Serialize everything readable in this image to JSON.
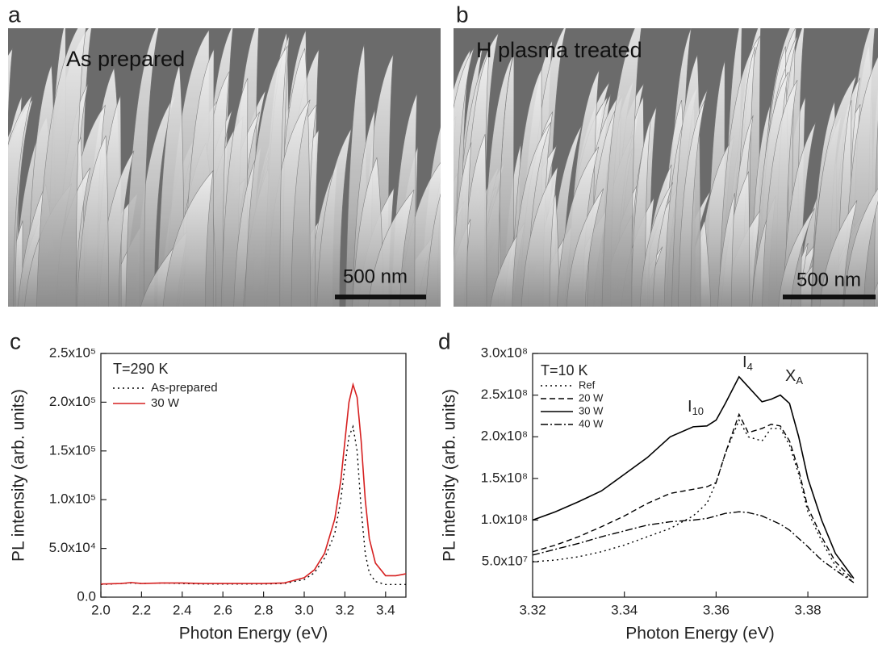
{
  "panels": [
    {
      "label": "a",
      "caption": "As prepared",
      "scale_bar": "500 nm"
    },
    {
      "label": "b",
      "caption": "H plasma treated",
      "scale_bar": "500 nm"
    }
  ],
  "chart_data": [
    {
      "type": "line",
      "panel": "c",
      "x_label": "Photon Energy (eV)",
      "y_label": "PL intensity (arb. units)",
      "annotations": [
        {
          "text": "T=290 K"
        }
      ],
      "x": [
        2.0,
        2.1,
        2.15,
        2.2,
        2.3,
        2.4,
        2.5,
        2.6,
        2.7,
        2.8,
        2.9,
        3.0,
        3.05,
        3.1,
        3.15,
        3.18,
        3.2,
        3.22,
        3.24,
        3.26,
        3.28,
        3.3,
        3.32,
        3.35,
        3.4,
        3.45,
        3.5
      ],
      "series": [
        {
          "name": "As-prepared",
          "color": "#000000",
          "style": "dotted",
          "values": [
            13000,
            14000,
            14500,
            14000,
            14500,
            14000,
            13500,
            13500,
            13500,
            13500,
            14000,
            18000,
            25000,
            40000,
            65000,
            100000,
            135000,
            165000,
            175000,
            150000,
            90000,
            45000,
            25000,
            16000,
            13000,
            13000,
            13000
          ]
        },
        {
          "name": "30 W",
          "color": "#d62020",
          "style": "solid",
          "values": [
            13500,
            14000,
            15000,
            14000,
            14500,
            14500,
            14000,
            14000,
            14000,
            14000,
            14500,
            20000,
            28000,
            45000,
            80000,
            120000,
            160000,
            200000,
            218000,
            205000,
            160000,
            100000,
            60000,
            35000,
            22000,
            22000,
            24000
          ]
        }
      ],
      "xlim": [
        2.0,
        3.5
      ],
      "xticks": [
        {
          "value": 2.0,
          "label": "2.0"
        },
        2.2,
        2.4,
        2.6,
        2.8,
        {
          "value": 3.0,
          "label": "3.0"
        },
        3.2,
        3.4
      ],
      "ylim": [
        0,
        250000
      ],
      "yticks": [
        {
          "value": 0,
          "label": "0.0"
        },
        {
          "value": 50000,
          "label": "5.0x10⁴"
        },
        {
          "value": 100000,
          "label": "1.0x10⁵"
        },
        {
          "value": 150000,
          "label": "1.5x10⁵"
        },
        {
          "value": 200000,
          "label": "2.0x10⁵"
        },
        {
          "value": 250000,
          "label": "2.5x10⁵"
        }
      ],
      "legend": "upper left"
    },
    {
      "type": "line",
      "panel": "d",
      "x_label": "Photon Energy (eV)",
      "y_label": "PL intensity (arb. units)",
      "annotations": [
        {
          "text": "T=10 K"
        },
        {
          "text": "I",
          "sub": "10"
        },
        {
          "text": "I",
          "sub": "4"
        },
        {
          "text": "X",
          "sub": "A"
        }
      ],
      "x": [
        3.32,
        3.325,
        3.33,
        3.335,
        3.34,
        3.345,
        3.35,
        3.355,
        3.358,
        3.36,
        3.362,
        3.365,
        3.367,
        3.37,
        3.372,
        3.374,
        3.376,
        3.378,
        3.38,
        3.383,
        3.386,
        3.39
      ],
      "series": [
        {
          "name": "Ref",
          "color": "#000000",
          "style": "dotted",
          "values": [
            50000000,
            52000000,
            56000000,
            62000000,
            70000000,
            80000000,
            90000000,
            105000000,
            120000000,
            145000000,
            180000000,
            220000000,
            200000000,
            195000000,
            210000000,
            210000000,
            190000000,
            155000000,
            110000000,
            75000000,
            45000000,
            25000000
          ]
        },
        {
          "name": "20 W",
          "color": "#000000",
          "style": "dashed",
          "values": [
            62000000,
            70000000,
            80000000,
            92000000,
            105000000,
            120000000,
            132000000,
            137000000,
            140000000,
            145000000,
            180000000,
            227000000,
            205000000,
            210000000,
            215000000,
            213000000,
            195000000,
            160000000,
            115000000,
            80000000,
            50000000,
            28000000
          ]
        },
        {
          "name": "30 W",
          "color": "#000000",
          "style": "solid",
          "values": [
            100000000,
            110000000,
            122000000,
            135000000,
            155000000,
            175000000,
            200000000,
            212000000,
            213000000,
            220000000,
            240000000,
            272000000,
            260000000,
            242000000,
            245000000,
            250000000,
            240000000,
            200000000,
            150000000,
            100000000,
            60000000,
            30000000
          ]
        },
        {
          "name": "40 W",
          "color": "#000000",
          "style": "dashdot",
          "values": [
            58000000,
            65000000,
            72000000,
            80000000,
            87000000,
            94000000,
            98000000,
            100000000,
            102000000,
            105000000,
            108000000,
            110000000,
            109000000,
            105000000,
            100000000,
            95000000,
            88000000,
            78000000,
            68000000,
            52000000,
            40000000,
            25000000
          ]
        }
      ],
      "xlim": [
        3.32,
        3.393
      ],
      "xticks": [
        3.32,
        3.34,
        3.36,
        3.38
      ],
      "ylim": [
        7500000,
        300000000
      ],
      "yticks": [
        {
          "value": 50000000,
          "label": "5.0x10⁷"
        },
        {
          "value": 100000000,
          "label": "1.0x10⁸"
        },
        {
          "value": 150000000,
          "label": "1.5x10⁸"
        },
        {
          "value": 200000000,
          "label": "2.0x10⁸"
        },
        {
          "value": 250000000,
          "label": "2.5x10⁸"
        },
        {
          "value": 300000000,
          "label": "3.0x10⁸"
        }
      ],
      "legend": "upper left"
    }
  ]
}
